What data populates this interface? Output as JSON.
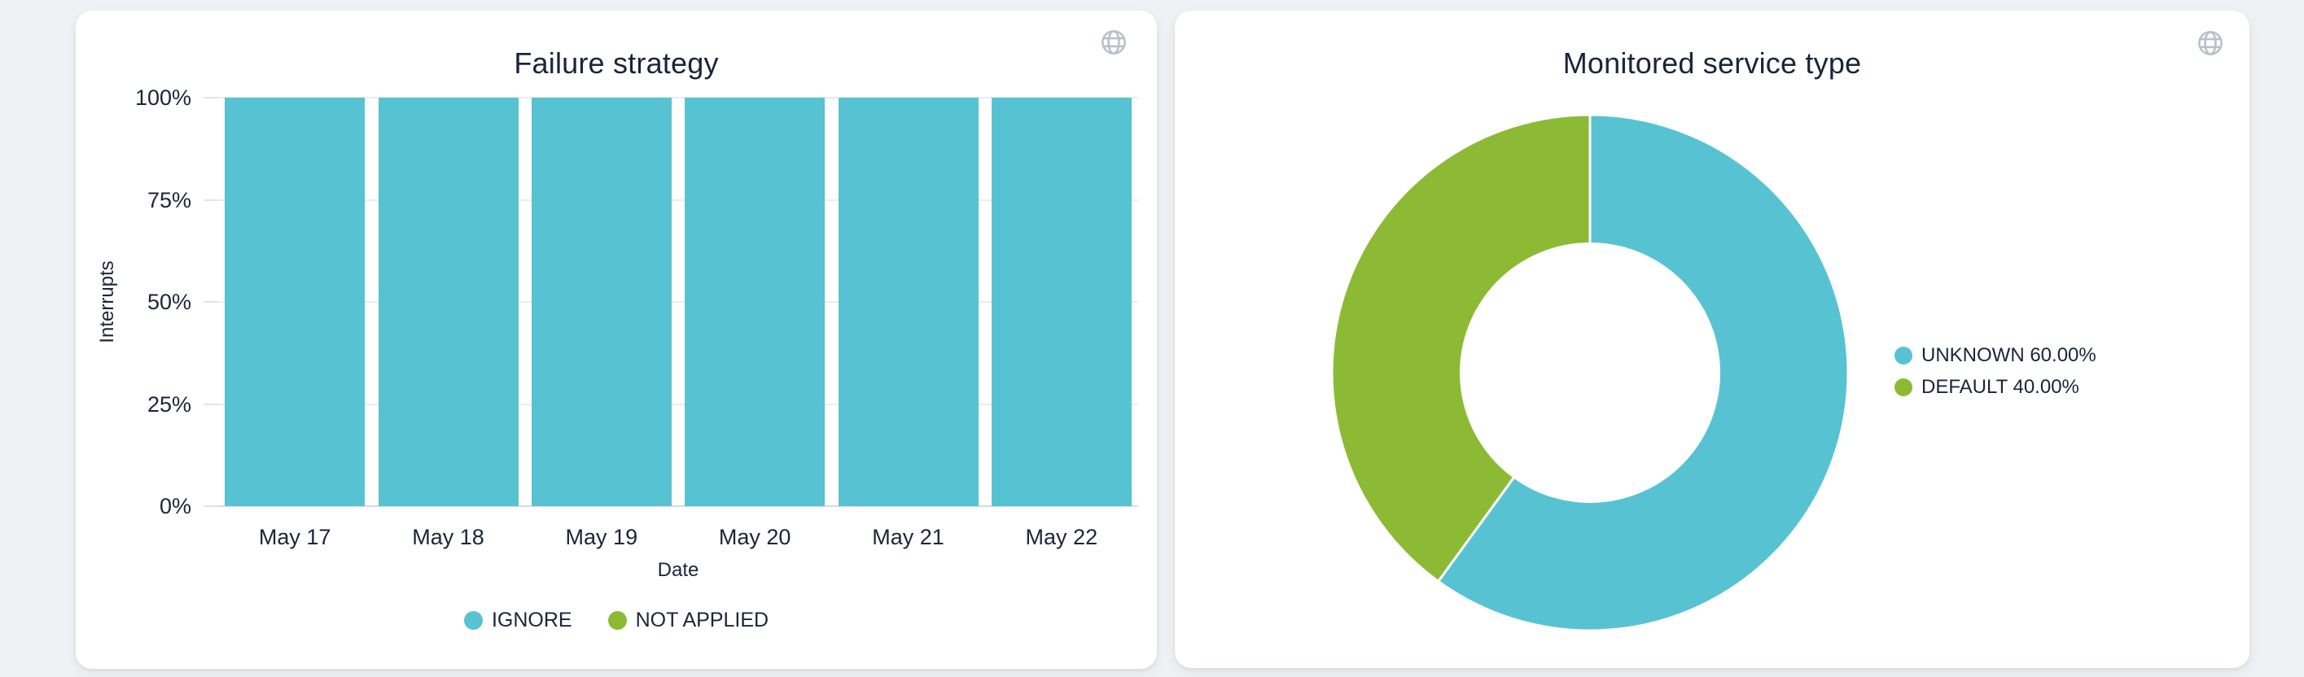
{
  "page": {
    "background_color": "#f0f1f5",
    "card_color": "#ffffff",
    "text_color": "#1a2638",
    "icon_color": "#b9c0cb"
  },
  "chart_data": [
    {
      "type": "bar",
      "stacked": true,
      "title": "Failure strategy",
      "categories": [
        "May 17",
        "May 18",
        "May 19",
        "May 20",
        "May 21",
        "May 22"
      ],
      "series": [
        {
          "name": "IGNORE",
          "color": "#57c3d2",
          "values": [
            100,
            100,
            100,
            100,
            100,
            100
          ]
        },
        {
          "name": "NOT APPLIED",
          "color": "#8dba34",
          "values": [
            0,
            0,
            0,
            0,
            0,
            0
          ]
        }
      ],
      "xlabel": "Date",
      "ylabel": "Interrupts",
      "ylim": [
        0,
        100
      ],
      "yticks": [
        {
          "label": "0%",
          "value": 0
        },
        {
          "label": "25%",
          "value": 25
        },
        {
          "label": "50%",
          "value": 50
        },
        {
          "label": "75%",
          "value": 75
        },
        {
          "label": "100%",
          "value": 100
        }
      ],
      "grid": true,
      "unit": "percent",
      "legend_position": "bottom"
    },
    {
      "type": "pie",
      "variant": "donut",
      "title": "Monitored service type",
      "labels": [
        "UNKNOWN",
        "DEFAULT"
      ],
      "values": [
        60.0,
        40.0
      ],
      "colors": [
        "#57c3d2",
        "#8dba34"
      ],
      "legend_labels": [
        "UNKNOWN 60.00%",
        "DEFAULT 40.00%"
      ],
      "legend_position": "right",
      "start_angle_deg": -90,
      "inner_radius_ratio": 0.5
    }
  ]
}
